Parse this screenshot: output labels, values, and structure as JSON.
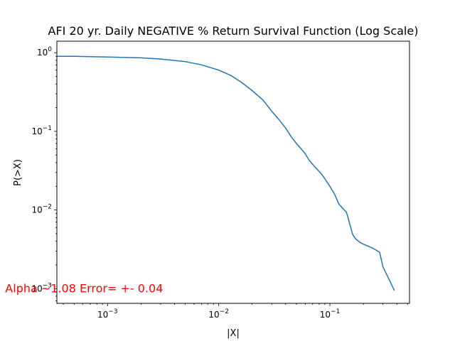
{
  "chart_data": {
    "type": "line",
    "title": "AFI 20 yr. Daily NEGATIVE % Return Survival Function (Log Scale)",
    "xlabel": "|X|",
    "ylabel": "P(>X)",
    "x_scale": "log",
    "y_scale": "log",
    "xlim": [
      0.00035,
      0.52
    ],
    "ylim": [
      0.00065,
      1.4
    ],
    "grid": false,
    "legend": "none",
    "x_ticks": [
      {
        "value": 0.001,
        "base": "10",
        "exp": "−3"
      },
      {
        "value": 0.01,
        "base": "10",
        "exp": "−2"
      },
      {
        "value": 0.1,
        "base": "10",
        "exp": "−1"
      }
    ],
    "y_ticks": [
      {
        "value": 0.001,
        "base": "10",
        "exp": "−3"
      },
      {
        "value": 0.01,
        "base": "10",
        "exp": "−2"
      },
      {
        "value": 0.1,
        "base": "10",
        "exp": "−1"
      },
      {
        "value": 1,
        "base": "10",
        "exp": "0"
      }
    ],
    "series": [
      {
        "color": "#1f77b4",
        "x": [
          0.00035,
          0.0005,
          0.001,
          0.002,
          0.003,
          0.005,
          0.007,
          0.01,
          0.013,
          0.016,
          0.02,
          0.025,
          0.03,
          0.035,
          0.04,
          0.045,
          0.05,
          0.055,
          0.06,
          0.065,
          0.07,
          0.075,
          0.08,
          0.085,
          0.09,
          0.1,
          0.11,
          0.12,
          0.13,
          0.14,
          0.145,
          0.15,
          0.155,
          0.16,
          0.17,
          0.19,
          0.24,
          0.28,
          0.3,
          0.38
        ],
        "y": [
          0.9,
          0.9,
          0.88,
          0.86,
          0.83,
          0.77,
          0.7,
          0.6,
          0.51,
          0.42,
          0.33,
          0.25,
          0.18,
          0.14,
          0.11,
          0.085,
          0.07,
          0.06,
          0.052,
          0.043,
          0.038,
          0.034,
          0.031,
          0.028,
          0.025,
          0.02,
          0.016,
          0.012,
          0.0105,
          0.0095,
          0.0082,
          0.0068,
          0.0058,
          0.0049,
          0.0043,
          0.0038,
          0.0033,
          0.0029,
          0.0019,
          0.00095
        ]
      }
    ],
    "annotation": {
      "text": "Alpha ~1.08  Error= +- 0.04",
      "color": "#ff0000",
      "x": 0.00012,
      "y": 0.001
    }
  }
}
